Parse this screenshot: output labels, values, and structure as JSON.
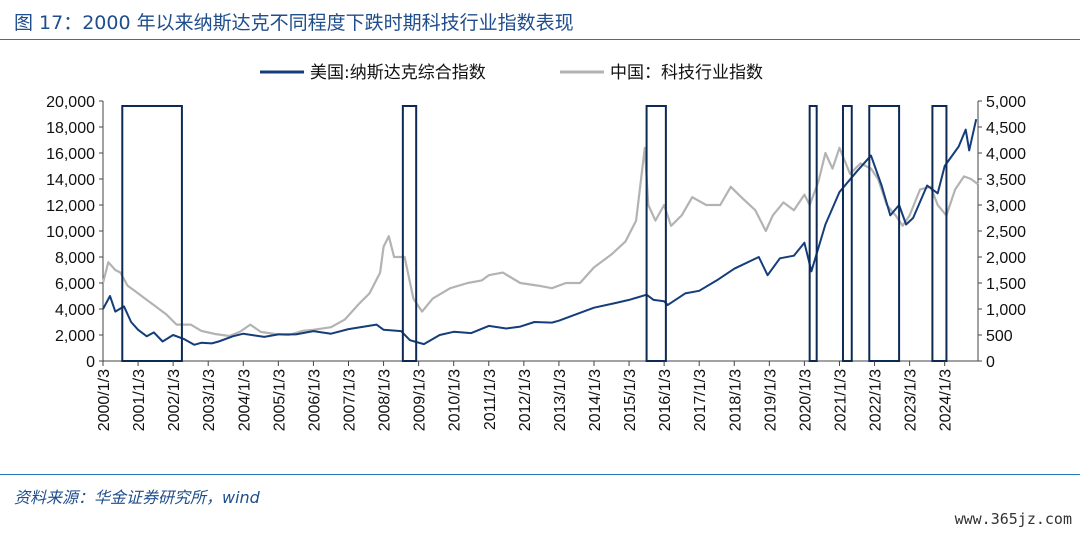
{
  "figure": {
    "title": "图 17：2000 年以来纳斯达克不同程度下跌时期科技行业指数表现",
    "source": "资料来源：华金证券研究所，wind",
    "watermark": "www.365jz.com"
  },
  "chart_data": {
    "type": "line",
    "legend_position": "top",
    "grid": false,
    "x_tick_labels": [
      "2000/1/3",
      "2001/1/3",
      "2002/1/3",
      "2003/1/3",
      "2004/1/3",
      "2005/1/3",
      "2006/1/3",
      "2007/1/3",
      "2008/1/3",
      "2009/1/3",
      "2010/1/3",
      "2011/1/3",
      "2012/1/3",
      "2013/1/3",
      "2014/1/3",
      "2015/1/3",
      "2016/1/3",
      "2017/1/3",
      "2018/1/3",
      "2019/1/3",
      "2020/1/3",
      "2021/1/3",
      "2022/1/3",
      "2023/1/3",
      "2024/1/3"
    ],
    "x_range": [
      2000.0,
      2024.95
    ],
    "y_left": {
      "range": [
        0,
        20000
      ],
      "ticks": [
        0,
        2000,
        4000,
        6000,
        8000,
        10000,
        12000,
        14000,
        16000,
        18000,
        20000
      ],
      "tick_labels": [
        "0",
        "2,000",
        "4,000",
        "6,000",
        "8,000",
        "10,000",
        "12,000",
        "14,000",
        "16,000",
        "18,000",
        "20,000"
      ]
    },
    "y_right": {
      "range": [
        0,
        5000
      ],
      "ticks": [
        0,
        500,
        1000,
        1500,
        2000,
        2500,
        3000,
        3500,
        4000,
        4500,
        5000
      ],
      "tick_labels": [
        "0",
        "500",
        "1,000",
        "1,500",
        "2,000",
        "2,500",
        "3,000",
        "3,500",
        "4,000",
        "4,500",
        "5,000"
      ]
    },
    "series": [
      {
        "name": "美国:纳斯达克综合指数",
        "axis": "left",
        "color": "#143d7a",
        "points": [
          [
            2000.0,
            4000
          ],
          [
            2000.2,
            5000
          ],
          [
            2000.35,
            3800
          ],
          [
            2000.6,
            4200
          ],
          [
            2000.8,
            3000
          ],
          [
            2001.0,
            2400
          ],
          [
            2001.25,
            1900
          ],
          [
            2001.45,
            2200
          ],
          [
            2001.7,
            1500
          ],
          [
            2002.0,
            2000
          ],
          [
            2002.3,
            1700
          ],
          [
            2002.6,
            1250
          ],
          [
            2002.8,
            1400
          ],
          [
            2003.1,
            1350
          ],
          [
            2003.3,
            1500
          ],
          [
            2003.7,
            1900
          ],
          [
            2004.0,
            2100
          ],
          [
            2004.6,
            1850
          ],
          [
            2005.0,
            2050
          ],
          [
            2005.5,
            2050
          ],
          [
            2006.0,
            2300
          ],
          [
            2006.5,
            2100
          ],
          [
            2007.0,
            2450
          ],
          [
            2007.8,
            2800
          ],
          [
            2008.0,
            2400
          ],
          [
            2008.5,
            2300
          ],
          [
            2008.75,
            1600
          ],
          [
            2009.15,
            1300
          ],
          [
            2009.6,
            2000
          ],
          [
            2010.0,
            2250
          ],
          [
            2010.5,
            2150
          ],
          [
            2011.0,
            2700
          ],
          [
            2011.5,
            2500
          ],
          [
            2011.9,
            2650
          ],
          [
            2012.3,
            3000
          ],
          [
            2012.8,
            2950
          ],
          [
            2013.0,
            3100
          ],
          [
            2013.5,
            3600
          ],
          [
            2014.0,
            4100
          ],
          [
            2014.6,
            4450
          ],
          [
            2015.0,
            4700
          ],
          [
            2015.5,
            5100
          ],
          [
            2015.7,
            4700
          ],
          [
            2016.0,
            4600
          ],
          [
            2016.1,
            4300
          ],
          [
            2016.6,
            5200
          ],
          [
            2017.0,
            5400
          ],
          [
            2017.5,
            6200
          ],
          [
            2018.0,
            7100
          ],
          [
            2018.7,
            8000
          ],
          [
            2018.95,
            6600
          ],
          [
            2019.3,
            7900
          ],
          [
            2019.7,
            8100
          ],
          [
            2020.0,
            9100
          ],
          [
            2020.2,
            6900
          ],
          [
            2020.6,
            10500
          ],
          [
            2021.0,
            13000
          ],
          [
            2021.5,
            14600
          ],
          [
            2021.9,
            15800
          ],
          [
            2022.2,
            13500
          ],
          [
            2022.45,
            11200
          ],
          [
            2022.7,
            12000
          ],
          [
            2022.9,
            10500
          ],
          [
            2023.1,
            11000
          ],
          [
            2023.5,
            13500
          ],
          [
            2023.8,
            12900
          ],
          [
            2024.0,
            15000
          ],
          [
            2024.4,
            16500
          ],
          [
            2024.6,
            17800
          ],
          [
            2024.7,
            16200
          ],
          [
            2024.9,
            18600
          ]
        ]
      },
      {
        "name": "中国：科技行业指数",
        "axis": "right",
        "color": "#b3b3b3",
        "points": [
          [
            2000.0,
            1500
          ],
          [
            2000.15,
            1900
          ],
          [
            2000.35,
            1750
          ],
          [
            2000.5,
            1700
          ],
          [
            2000.7,
            1450
          ],
          [
            2000.9,
            1350
          ],
          [
            2001.2,
            1200
          ],
          [
            2001.5,
            1050
          ],
          [
            2001.8,
            900
          ],
          [
            2002.1,
            700
          ],
          [
            2002.5,
            700
          ],
          [
            2002.8,
            580
          ],
          [
            2003.2,
            520
          ],
          [
            2003.6,
            480
          ],
          [
            2003.9,
            560
          ],
          [
            2004.2,
            700
          ],
          [
            2004.5,
            560
          ],
          [
            2004.9,
            520
          ],
          [
            2005.3,
            500
          ],
          [
            2005.7,
            580
          ],
          [
            2006.0,
            600
          ],
          [
            2006.5,
            650
          ],
          [
            2006.9,
            800
          ],
          [
            2007.3,
            1100
          ],
          [
            2007.6,
            1300
          ],
          [
            2007.9,
            1700
          ],
          [
            2008.0,
            2200
          ],
          [
            2008.15,
            2400
          ],
          [
            2008.3,
            2000
          ],
          [
            2008.6,
            2000
          ],
          [
            2008.85,
            1200
          ],
          [
            2009.1,
            950
          ],
          [
            2009.4,
            1200
          ],
          [
            2009.9,
            1400
          ],
          [
            2010.4,
            1500
          ],
          [
            2010.8,
            1550
          ],
          [
            2011.0,
            1650
          ],
          [
            2011.4,
            1700
          ],
          [
            2011.9,
            1500
          ],
          [
            2012.4,
            1450
          ],
          [
            2012.8,
            1400
          ],
          [
            2013.2,
            1500
          ],
          [
            2013.6,
            1500
          ],
          [
            2014.0,
            1800
          ],
          [
            2014.5,
            2050
          ],
          [
            2014.9,
            2300
          ],
          [
            2015.2,
            2700
          ],
          [
            2015.45,
            4100
          ],
          [
            2015.55,
            3000
          ],
          [
            2015.75,
            2700
          ],
          [
            2016.0,
            3000
          ],
          [
            2016.2,
            2600
          ],
          [
            2016.5,
            2800
          ],
          [
            2016.8,
            3150
          ],
          [
            2017.2,
            3000
          ],
          [
            2017.6,
            3000
          ],
          [
            2017.9,
            3350
          ],
          [
            2018.2,
            3150
          ],
          [
            2018.6,
            2900
          ],
          [
            2018.9,
            2500
          ],
          [
            2019.1,
            2800
          ],
          [
            2019.4,
            3050
          ],
          [
            2019.7,
            2900
          ],
          [
            2020.0,
            3200
          ],
          [
            2020.15,
            3000
          ],
          [
            2020.4,
            3450
          ],
          [
            2020.6,
            4000
          ],
          [
            2020.8,
            3700
          ],
          [
            2021.0,
            4100
          ],
          [
            2021.3,
            3600
          ],
          [
            2021.6,
            3800
          ],
          [
            2021.9,
            3700
          ],
          [
            2022.1,
            3500
          ],
          [
            2022.35,
            3000
          ],
          [
            2022.6,
            2800
          ],
          [
            2022.8,
            2600
          ],
          [
            2023.0,
            2800
          ],
          [
            2023.3,
            3300
          ],
          [
            2023.6,
            3350
          ],
          [
            2023.8,
            3000
          ],
          [
            2024.05,
            2800
          ],
          [
            2024.3,
            3300
          ],
          [
            2024.55,
            3550
          ],
          [
            2024.75,
            3500
          ],
          [
            2024.95,
            3400
          ]
        ]
      }
    ],
    "highlight_periods": [
      {
        "label": "",
        "x_start": 2000.55,
        "x_end": 2002.25
      },
      {
        "label": "",
        "x_start": 2008.55,
        "x_end": 2008.93
      },
      {
        "label": "",
        "x_start": 2015.5,
        "x_end": 2016.05
      },
      {
        "label": "",
        "x_start": 2020.15,
        "x_end": 2020.35
      },
      {
        "label": "",
        "x_start": 2021.1,
        "x_end": 2021.35
      },
      {
        "label": "",
        "x_start": 2021.85,
        "x_end": 2022.7
      },
      {
        "label": "",
        "x_start": 2023.65,
        "x_end": 2024.05
      }
    ]
  }
}
